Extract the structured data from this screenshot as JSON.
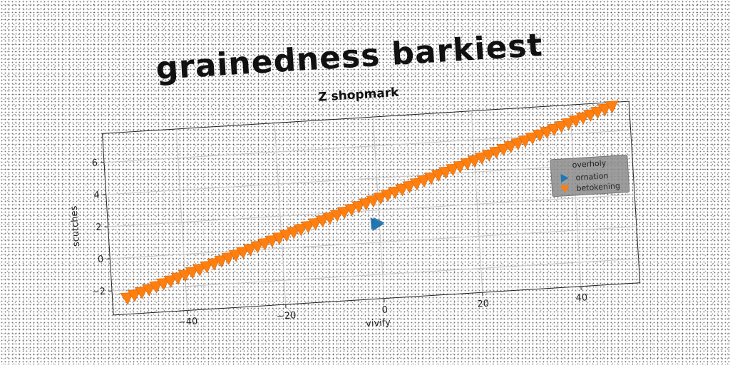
{
  "chart_data": {
    "type": "scatter",
    "title": "grainedness barkiest",
    "subtitle": "Z shopmark",
    "xlabel": "vivify",
    "ylabel": "scutches",
    "xlim": [
      -55,
      52
    ],
    "ylim": [
      -3.5,
      7.8
    ],
    "xticks": [
      -40,
      -20,
      0,
      20,
      40
    ],
    "yticks": [
      -2,
      0,
      2,
      4,
      6
    ],
    "xtick_labels": [
      "−40",
      "−20",
      "0",
      "20",
      "40"
    ],
    "ytick_labels": [
      "−2",
      "0",
      "2",
      "4",
      "6"
    ],
    "grid": true,
    "legend": {
      "title": "overholy",
      "placement": "right",
      "entries": [
        {
          "name": "ornation",
          "marker": "triangle-right",
          "color": "#1f77b4"
        },
        {
          "name": "betokening",
          "marker": "triangle-down",
          "color": "#ff7f0e"
        }
      ]
    },
    "series": [
      {
        "name": "ornation",
        "marker": "triangle-right",
        "color": "#1f77b4",
        "points": [
          [
            -0.8,
            1.2
          ],
          [
            -0.5,
            1.1
          ],
          [
            -0.2,
            1.2
          ]
        ]
      },
      {
        "name": "betokening",
        "marker": "triangle-down",
        "color": "#ff7f0e",
        "x_start": -52,
        "x_end": 49,
        "x_step": 1.5,
        "slope": 0.1,
        "intercept": 2.7
      }
    ]
  }
}
